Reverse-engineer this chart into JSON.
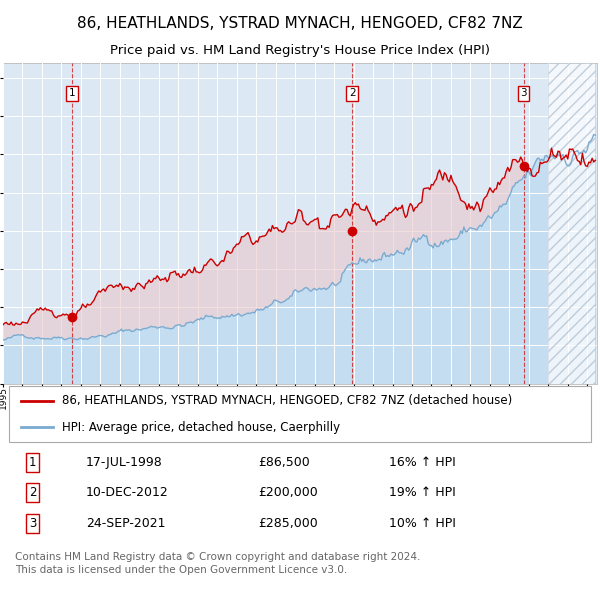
{
  "title": "86, HEATHLANDS, YSTRAD MYNACH, HENGOED, CF82 7NZ",
  "subtitle": "Price paid vs. HM Land Registry's House Price Index (HPI)",
  "legend_line1": "86, HEATHLANDS, YSTRAD MYNACH, HENGOED, CF82 7NZ (detached house)",
  "legend_line2": "HPI: Average price, detached house, Caerphilly",
  "sale_color": "#cc0000",
  "hpi_color": "#7aaad0",
  "hpi_fill_color": "#c5ddf0",
  "background_color": "#dce9f5",
  "grid_color": "#ffffff",
  "ylim": [
    0,
    420000
  ],
  "yticks": [
    0,
    50000,
    100000,
    150000,
    200000,
    250000,
    300000,
    350000,
    400000
  ],
  "xlim_start": 1995.0,
  "xlim_end": 2025.5,
  "hatch_start": 2023.0,
  "sales": [
    {
      "date": 1998.54,
      "price": 86500,
      "label": "1"
    },
    {
      "date": 2012.94,
      "price": 200000,
      "label": "2"
    },
    {
      "date": 2021.73,
      "price": 285000,
      "label": "3"
    }
  ],
  "sale_table": [
    {
      "num": "1",
      "date": "17-JUL-1998",
      "price": "£86,500",
      "pct": "16% ↑ HPI"
    },
    {
      "num": "2",
      "date": "10-DEC-2012",
      "price": "£200,000",
      "pct": "19% ↑ HPI"
    },
    {
      "num": "3",
      "date": "24-SEP-2021",
      "price": "£285,000",
      "pct": "10% ↑ HPI"
    }
  ],
  "footer": "Contains HM Land Registry data © Crown copyright and database right 2024.\nThis data is licensed under the Open Government Licence v3.0.",
  "vline_color": "#cc0000",
  "title_fontsize": 11,
  "subtitle_fontsize": 9.5,
  "tick_fontsize": 8,
  "legend_fontsize": 8.5,
  "table_fontsize": 9,
  "footer_fontsize": 7.5
}
